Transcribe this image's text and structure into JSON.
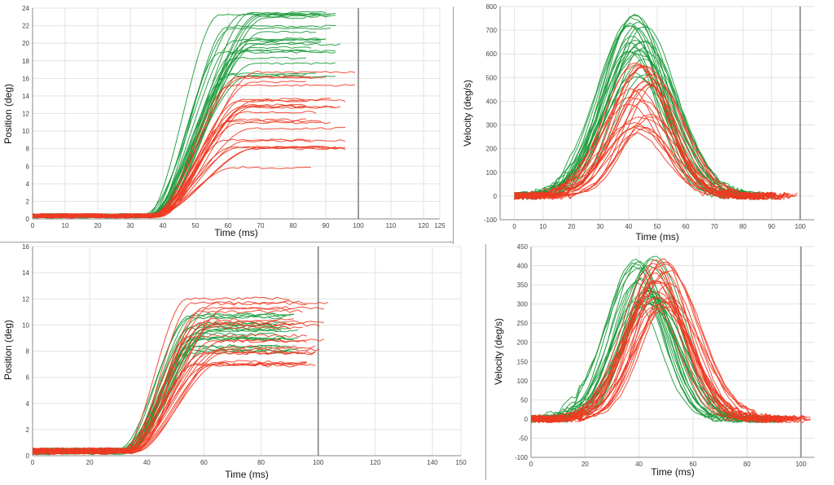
{
  "figure": {
    "colors": {
      "fast": "#1a9a3a",
      "slow": "#ef3a22",
      "grid": "#e3e3e3",
      "axis": "#888888",
      "marker": "#7a7a7a"
    }
  },
  "chart_data": [
    {
      "type": "line",
      "panel": "top-left",
      "xlabel": "Time (ms)",
      "ylabel": "Position (deg)",
      "xlim": [
        0,
        125
      ],
      "ylim": [
        0,
        24
      ],
      "xticks": [
        0,
        10,
        20,
        30,
        40,
        50,
        60,
        70,
        80,
        90,
        100,
        110,
        120,
        125
      ],
      "yticks": [
        0,
        2,
        4,
        6,
        8,
        10,
        12,
        14,
        16,
        18,
        20,
        22,
        24
      ],
      "vline_x": 100,
      "series_groups": [
        {
          "name": "green traces",
          "color": "fast",
          "count": 24,
          "shape": "sigmoid",
          "onset_ms": [
            34,
            38
          ],
          "end_ms": [
            84,
            95
          ],
          "final": [
            16,
            24
          ]
        },
        {
          "name": "red traces",
          "color": "slow",
          "count": 24,
          "shape": "sigmoid",
          "onset_ms": [
            36,
            40
          ],
          "end_ms": [
            84,
            100
          ],
          "final": [
            5.8,
            16.8
          ]
        }
      ]
    },
    {
      "type": "line",
      "panel": "top-right",
      "xlabel": "Time (ms)",
      "ylabel": "Velocity (deg/s)",
      "xlim": [
        -5,
        105
      ],
      "ylim": [
        -100,
        800
      ],
      "xticks": [
        0,
        10,
        20,
        30,
        40,
        50,
        60,
        70,
        80,
        90,
        100
      ],
      "yticks": [
        -100,
        0,
        100,
        200,
        300,
        400,
        500,
        600,
        700,
        800
      ],
      "vline_x": 100,
      "series_groups": [
        {
          "name": "green traces",
          "color": "fast",
          "count": 24,
          "shape": "bell",
          "peak_ms": [
            40,
            46
          ],
          "peak": [
            500,
            770
          ],
          "end_ms": [
            85,
            95
          ]
        },
        {
          "name": "red traces",
          "color": "slow",
          "count": 24,
          "shape": "bell",
          "peak_ms": [
            40,
            50
          ],
          "peak": [
            260,
            560
          ],
          "end_ms": [
            85,
            100
          ]
        }
      ]
    },
    {
      "type": "line",
      "panel": "bottom-left",
      "xlabel": "Time (ms)",
      "ylabel": "Position (deg)",
      "xlim": [
        0,
        150
      ],
      "ylim": [
        0,
        16
      ],
      "xticks": [
        0,
        20,
        40,
        60,
        80,
        100,
        120,
        140,
        150
      ],
      "yticks": [
        0,
        2,
        4,
        6,
        8,
        10,
        12,
        14,
        16
      ],
      "vline_x": 100,
      "series_groups": [
        {
          "name": "green traces",
          "color": "fast",
          "count": 22,
          "shape": "sigmoid",
          "onset_ms": [
            30,
            34
          ],
          "end_ms": [
            85,
            95
          ],
          "final": [
            7.5,
            11
          ]
        },
        {
          "name": "red traces",
          "color": "slow",
          "count": 24,
          "shape": "sigmoid",
          "onset_ms": [
            31,
            36
          ],
          "end_ms": [
            90,
            105
          ],
          "final": [
            6.8,
            12.2
          ]
        }
      ]
    },
    {
      "type": "line",
      "panel": "bottom-right",
      "xlabel": "Time (ms)",
      "ylabel": "Velocity (deg/s)",
      "xlim": [
        0,
        105
      ],
      "ylim": [
        -100,
        450
      ],
      "xticks": [
        0,
        20,
        40,
        60,
        80,
        100
      ],
      "yticks": [
        -100,
        -50,
        0,
        50,
        100,
        150,
        200,
        250,
        300,
        350,
        400,
        450
      ],
      "vline_x": 100,
      "series_groups": [
        {
          "name": "green traces",
          "color": "fast",
          "count": 22,
          "shape": "bell",
          "peak_ms": [
            38,
            46
          ],
          "peak": [
            280,
            430
          ],
          "end_ms": [
            85,
            95
          ]
        },
        {
          "name": "red traces",
          "color": "slow",
          "count": 24,
          "shape": "bell",
          "peak_ms": [
            44,
            52
          ],
          "peak": [
            280,
            420
          ],
          "end_ms": [
            90,
            105
          ]
        }
      ]
    }
  ]
}
